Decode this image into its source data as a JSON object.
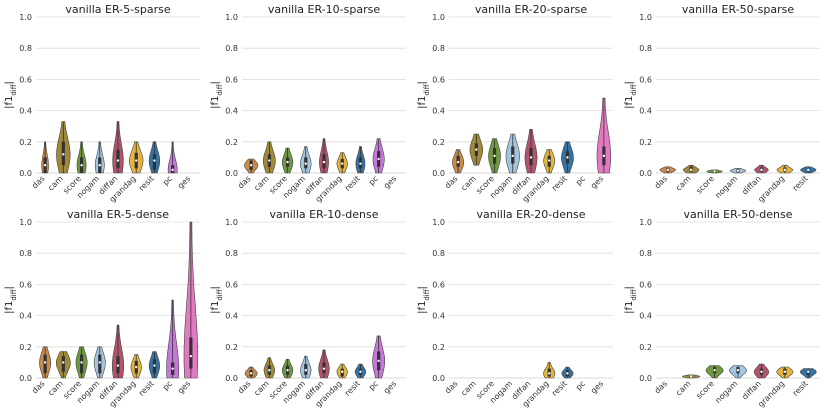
{
  "ylabel": "|f1diff|",
  "ylabel_main": "|f1",
  "ylabel_sub": "diff",
  "ylabel_end": "|",
  "colors": {
    "das": "#c98a4c",
    "cam": "#a2893a",
    "score": "#6d9a3e",
    "nogam": "#a3c5e0",
    "diffan": "#b2546c",
    "grandag": "#e3b43e",
    "resit": "#3673a5",
    "pc": "#c777dc",
    "ges": "#e279c2"
  },
  "chart_data": [
    {
      "type": "violin",
      "title": "vanilla ER-5-sparse",
      "categories": [
        "das",
        "cam",
        "score",
        "nogam",
        "diffan",
        "grandag",
        "resit",
        "pc",
        "ges"
      ],
      "ylim": [
        0,
        1
      ],
      "yticks": [
        "0.0",
        "0.2",
        "0.4",
        "0.6",
        "0.8",
        "1.0"
      ],
      "violins": [
        {
          "min": 0,
          "max": 0.2,
          "q1": 0,
          "median": 0.05,
          "q3": 0.1,
          "width": 0.45
        },
        {
          "min": 0,
          "max": 0.33,
          "q1": 0.05,
          "median": 0.12,
          "q3": 0.2,
          "width": 0.9
        },
        {
          "min": 0,
          "max": 0.2,
          "q1": 0,
          "median": 0.05,
          "q3": 0.1,
          "width": 0.6
        },
        {
          "min": 0,
          "max": 0.2,
          "q1": 0,
          "median": 0.05,
          "q3": 0.1,
          "width": 0.6
        },
        {
          "min": 0,
          "max": 0.33,
          "q1": 0.03,
          "median": 0.08,
          "q3": 0.15,
          "width": 0.7
        },
        {
          "min": 0,
          "max": 0.2,
          "q1": 0.03,
          "median": 0.08,
          "q3": 0.13,
          "width": 0.9
        },
        {
          "min": 0,
          "max": 0.2,
          "q1": 0.02,
          "median": 0.08,
          "q3": 0.12,
          "width": 0.7
        },
        {
          "min": 0,
          "max": 0.2,
          "q1": 0,
          "median": 0.02,
          "q3": 0.05,
          "width": 0.6
        },
        null
      ]
    },
    {
      "type": "violin",
      "title": "vanilla ER-10-sparse",
      "categories": [
        "das",
        "cam",
        "score",
        "nogam",
        "diffan",
        "grandag",
        "resit",
        "pc",
        "ges"
      ],
      "ylim": [
        0,
        1
      ],
      "yticks": [
        "0.0",
        "0.2",
        "0.4",
        "0.6",
        "0.8",
        "1.0"
      ],
      "violins": [
        {
          "min": 0,
          "max": 0.09,
          "q1": 0.02,
          "median": 0.05,
          "q3": 0.08,
          "width": 0.9
        },
        {
          "min": 0,
          "max": 0.2,
          "q1": 0.04,
          "median": 0.08,
          "q3": 0.12,
          "width": 0.8
        },
        {
          "min": 0,
          "max": 0.16,
          "q1": 0.04,
          "median": 0.07,
          "q3": 0.1,
          "width": 0.7
        },
        {
          "min": 0,
          "max": 0.17,
          "q1": 0.03,
          "median": 0.06,
          "q3": 0.1,
          "width": 0.7
        },
        {
          "min": 0,
          "max": 0.22,
          "q1": 0.03,
          "median": 0.07,
          "q3": 0.12,
          "width": 0.6
        },
        {
          "min": 0,
          "max": 0.13,
          "q1": 0.03,
          "median": 0.06,
          "q3": 0.09,
          "width": 0.7
        },
        {
          "min": 0,
          "max": 0.17,
          "q1": 0.03,
          "median": 0.06,
          "q3": 0.1,
          "width": 0.6
        },
        {
          "min": 0,
          "max": 0.22,
          "q1": 0.04,
          "median": 0.09,
          "q3": 0.14,
          "width": 0.75
        },
        null
      ]
    },
    {
      "type": "violin",
      "title": "vanilla ER-20-sparse",
      "categories": [
        "das",
        "cam",
        "score",
        "nogam",
        "diffan",
        "grandag",
        "resit",
        "pc",
        "ges"
      ],
      "ylim": [
        0,
        1
      ],
      "yticks": [
        "0.0",
        "0.2",
        "0.4",
        "0.6",
        "0.8",
        "1.0"
      ],
      "violins": [
        {
          "min": 0,
          "max": 0.15,
          "q1": 0.04,
          "median": 0.07,
          "q3": 0.11,
          "width": 0.75
        },
        {
          "min": 0.05,
          "max": 0.25,
          "q1": 0.11,
          "median": 0.15,
          "q3": 0.19,
          "width": 0.85
        },
        {
          "min": 0,
          "max": 0.22,
          "q1": 0.06,
          "median": 0.11,
          "q3": 0.16,
          "width": 0.8
        },
        {
          "min": 0,
          "max": 0.25,
          "q1": 0.06,
          "median": 0.11,
          "q3": 0.17,
          "width": 0.9
        },
        {
          "min": 0,
          "max": 0.28,
          "q1": 0.05,
          "median": 0.1,
          "q3": 0.16,
          "width": 0.8
        },
        {
          "min": 0,
          "max": 0.15,
          "q1": 0.04,
          "median": 0.08,
          "q3": 0.11,
          "width": 0.75
        },
        {
          "min": 0,
          "max": 0.2,
          "q1": 0.06,
          "median": 0.1,
          "q3": 0.14,
          "width": 0.8
        },
        null,
        {
          "min": 0,
          "max": 0.48,
          "q1": 0.05,
          "median": 0.11,
          "q3": 0.17,
          "width": 0.9
        }
      ]
    },
    {
      "type": "violin",
      "title": "vanilla ER-50-sparse",
      "categories": [
        "das",
        "cam",
        "score",
        "nogam",
        "diffan",
        "grandag",
        "resit"
      ],
      "ylim": [
        0,
        1
      ],
      "yticks": [
        "0.0",
        "0.2",
        "0.4",
        "0.6",
        "0.8",
        "1.0"
      ],
      "violins": [
        {
          "min": 0,
          "max": 0.04,
          "q1": 0.01,
          "median": 0.02,
          "q3": 0.03,
          "width": 0.8
        },
        {
          "min": 0,
          "max": 0.05,
          "q1": 0.01,
          "median": 0.02,
          "q3": 0.04,
          "width": 0.8
        },
        {
          "min": 0,
          "max": 0.02,
          "q1": 0,
          "median": 0.01,
          "q3": 0.015,
          "width": 0.8
        },
        {
          "min": 0,
          "max": 0.03,
          "q1": 0.005,
          "median": 0.015,
          "q3": 0.025,
          "width": 0.8
        },
        {
          "min": 0,
          "max": 0.05,
          "q1": 0.01,
          "median": 0.02,
          "q3": 0.035,
          "width": 0.7
        },
        {
          "min": 0,
          "max": 0.05,
          "q1": 0.01,
          "median": 0.02,
          "q3": 0.035,
          "width": 0.8
        },
        {
          "min": 0,
          "max": 0.04,
          "q1": 0.01,
          "median": 0.02,
          "q3": 0.03,
          "width": 0.8
        }
      ]
    },
    {
      "type": "violin",
      "title": "vanilla ER-5-dense",
      "categories": [
        "das",
        "cam",
        "score",
        "nogam",
        "diffan",
        "grandag",
        "resit",
        "pc",
        "ges"
      ],
      "ylim": [
        0,
        1
      ],
      "yticks": [
        "0.0",
        "0.2",
        "0.4",
        "0.6",
        "0.8",
        "1.0"
      ],
      "violins": [
        {
          "min": 0,
          "max": 0.2,
          "q1": 0.03,
          "median": 0.1,
          "q3": 0.15,
          "width": 0.75
        },
        {
          "min": 0,
          "max": 0.17,
          "q1": 0.04,
          "median": 0.1,
          "q3": 0.14,
          "width": 0.95
        },
        {
          "min": 0,
          "max": 0.2,
          "q1": 0.03,
          "median": 0.1,
          "q3": 0.15,
          "width": 0.75
        },
        {
          "min": 0,
          "max": 0.2,
          "q1": 0.03,
          "median": 0.1,
          "q3": 0.15,
          "width": 0.75
        },
        {
          "min": 0,
          "max": 0.34,
          "q1": 0.03,
          "median": 0.08,
          "q3": 0.14,
          "width": 0.75
        },
        {
          "min": 0,
          "max": 0.15,
          "q1": 0.03,
          "median": 0.07,
          "q3": 0.11,
          "width": 0.7
        },
        {
          "min": 0,
          "max": 0.17,
          "q1": 0.03,
          "median": 0.08,
          "q3": 0.12,
          "width": 0.7
        },
        {
          "min": 0,
          "max": 0.5,
          "q1": 0.02,
          "median": 0.06,
          "q3": 0.1,
          "width": 0.8
        },
        {
          "min": 0,
          "max": 1.0,
          "q1": 0.06,
          "median": 0.14,
          "q3": 0.26,
          "width": 0.9
        }
      ]
    },
    {
      "type": "violin",
      "title": "vanilla ER-10-dense",
      "categories": [
        "das",
        "cam",
        "score",
        "nogam",
        "diffan",
        "grandag",
        "resit",
        "pc",
        "ges"
      ],
      "ylim": [
        0,
        1
      ],
      "yticks": [
        "0.0",
        "0.2",
        "0.4",
        "0.6",
        "0.8",
        "1.0"
      ],
      "violins": [
        {
          "min": 0,
          "max": 0.07,
          "q1": 0.01,
          "median": 0.03,
          "q3": 0.05,
          "width": 0.8
        },
        {
          "min": 0,
          "max": 0.13,
          "q1": 0.02,
          "median": 0.05,
          "q3": 0.08,
          "width": 0.7
        },
        {
          "min": 0,
          "max": 0.12,
          "q1": 0.02,
          "median": 0.05,
          "q3": 0.08,
          "width": 0.7
        },
        {
          "min": 0,
          "max": 0.14,
          "q1": 0.02,
          "median": 0.05,
          "q3": 0.09,
          "width": 0.7
        },
        {
          "min": 0,
          "max": 0.18,
          "q1": 0.03,
          "median": 0.06,
          "q3": 0.1,
          "width": 0.7
        },
        {
          "min": 0,
          "max": 0.09,
          "q1": 0.01,
          "median": 0.04,
          "q3": 0.06,
          "width": 0.7
        },
        {
          "min": 0,
          "max": 0.09,
          "q1": 0.02,
          "median": 0.04,
          "q3": 0.06,
          "width": 0.7
        },
        {
          "min": 0,
          "max": 0.27,
          "q1": 0.05,
          "median": 0.11,
          "q3": 0.17,
          "width": 0.8
        },
        null
      ]
    },
    {
      "type": "violin",
      "title": "vanilla ER-20-dense",
      "categories": [
        "das",
        "cam",
        "score",
        "nogam",
        "diffan",
        "grandag",
        "resit",
        "pc",
        "ges"
      ],
      "ylim": [
        0,
        1
      ],
      "yticks": [
        "0.0",
        "0.2",
        "0.4",
        "0.6",
        "0.8",
        "1.0"
      ],
      "violins": [
        null,
        null,
        null,
        null,
        null,
        {
          "min": 0,
          "max": 0.1,
          "q1": 0.01,
          "median": 0.03,
          "q3": 0.06,
          "width": 0.75
        },
        {
          "min": 0,
          "max": 0.07,
          "q1": 0.01,
          "median": 0.03,
          "q3": 0.05,
          "width": 0.75
        },
        null,
        null
      ]
    },
    {
      "type": "violin",
      "title": "vanilla ER-50-dense",
      "categories": [
        "das",
        "cam",
        "score",
        "nogam",
        "diffan",
        "grandag",
        "resit"
      ],
      "ylim": [
        0,
        1
      ],
      "yticks": [
        "0.0",
        "0.2",
        "0.4",
        "0.6",
        "0.8",
        "1.0"
      ],
      "violins": [
        null,
        {
          "min": 0,
          "max": 0.02,
          "q1": 0.005,
          "median": 0.01,
          "q3": 0.015,
          "width": 0.9
        },
        {
          "min": 0,
          "max": 0.08,
          "q1": 0.03,
          "median": 0.05,
          "q3": 0.07,
          "width": 0.9
        },
        {
          "min": 0,
          "max": 0.08,
          "q1": 0.03,
          "median": 0.05,
          "q3": 0.07,
          "width": 0.9
        },
        {
          "min": 0,
          "max": 0.09,
          "q1": 0.02,
          "median": 0.04,
          "q3": 0.06,
          "width": 0.75
        },
        {
          "min": 0,
          "max": 0.07,
          "q1": 0.02,
          "median": 0.04,
          "q3": 0.06,
          "width": 0.85
        },
        {
          "min": 0,
          "max": 0.06,
          "q1": 0.02,
          "median": 0.04,
          "q3": 0.05,
          "width": 0.85
        }
      ]
    }
  ]
}
